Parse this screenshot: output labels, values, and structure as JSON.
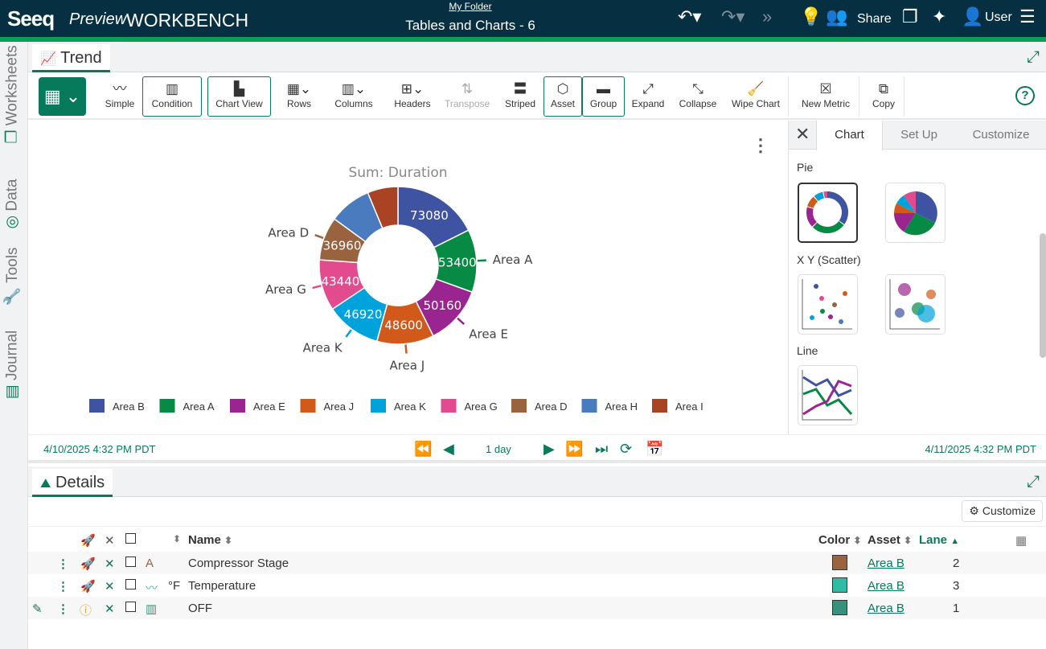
{
  "header": {
    "logo": "Seeq",
    "preview": "Preview",
    "product": "WORKBENCH",
    "folder": "My Folder",
    "title": "Tables and Charts - 6",
    "share": "Share",
    "user": "User"
  },
  "sidebar": {
    "tabs": [
      {
        "label": "Worksheets"
      },
      {
        "label": "Data"
      },
      {
        "label": "Tools"
      },
      {
        "label": "Journal"
      }
    ]
  },
  "trend_tab": {
    "label": "Trend"
  },
  "toolbar": {
    "items": [
      {
        "label": "Simple"
      },
      {
        "label": "Condition"
      },
      {
        "label": "Chart View"
      },
      {
        "label": "Rows"
      },
      {
        "label": "Columns"
      },
      {
        "label": "Headers"
      },
      {
        "label": "Transpose"
      },
      {
        "label": "Striped"
      },
      {
        "label": "Asset"
      },
      {
        "label": "Group"
      },
      {
        "label": "Expand"
      },
      {
        "label": "Collapse"
      },
      {
        "label": "Wipe Chart"
      },
      {
        "label": "New Metric"
      },
      {
        "label": "Copy"
      }
    ],
    "help": "?"
  },
  "chart_data": {
    "type": "pie",
    "variant": "donut",
    "title": "Sum: Duration",
    "categories": [
      "Area B",
      "Area A",
      "Area E",
      "Area J",
      "Area K",
      "Area G",
      "Area D",
      "Area H",
      "Area I"
    ],
    "values": [
      73080,
      53400,
      50160,
      48600,
      46920,
      43440,
      36960,
      36000,
      26000
    ],
    "colors": [
      "#3f53a3",
      "#068a44",
      "#9b2590",
      "#d15a1b",
      "#00a2dc",
      "#e24b8d",
      "#9a6340",
      "#4a7bbf",
      "#aa4324"
    ],
    "legend": "bottom"
  },
  "panel": {
    "tabs": [
      {
        "label": "Chart"
      },
      {
        "label": "Set Up"
      },
      {
        "label": "Customize"
      }
    ],
    "sections": [
      {
        "label": "Pie"
      },
      {
        "label": "X Y (Scatter)"
      },
      {
        "label": "Line"
      }
    ]
  },
  "timebar": {
    "start": "4/10/2025 4:32 PM  PDT",
    "end": "4/11/2025 4:32 PM  PDT",
    "duration": "1 day"
  },
  "details": {
    "tab": "Details",
    "customize": "Customize",
    "columns": {
      "name": "Name",
      "color": "Color",
      "asset": "Asset",
      "lane": "Lane"
    },
    "rows": [
      {
        "unit": "",
        "name": "Compressor Stage",
        "color": "#9a6440",
        "asset": "Area B",
        "lane": "2",
        "type": "string-signal"
      },
      {
        "unit": "°F",
        "name": "Temperature",
        "color": "#2ebca6",
        "asset": "Area B",
        "lane": "3",
        "type": "signal"
      },
      {
        "unit": "",
        "name": "OFF",
        "color": "#36927a",
        "asset": "Area B",
        "lane": "1",
        "type": "condition"
      }
    ]
  }
}
